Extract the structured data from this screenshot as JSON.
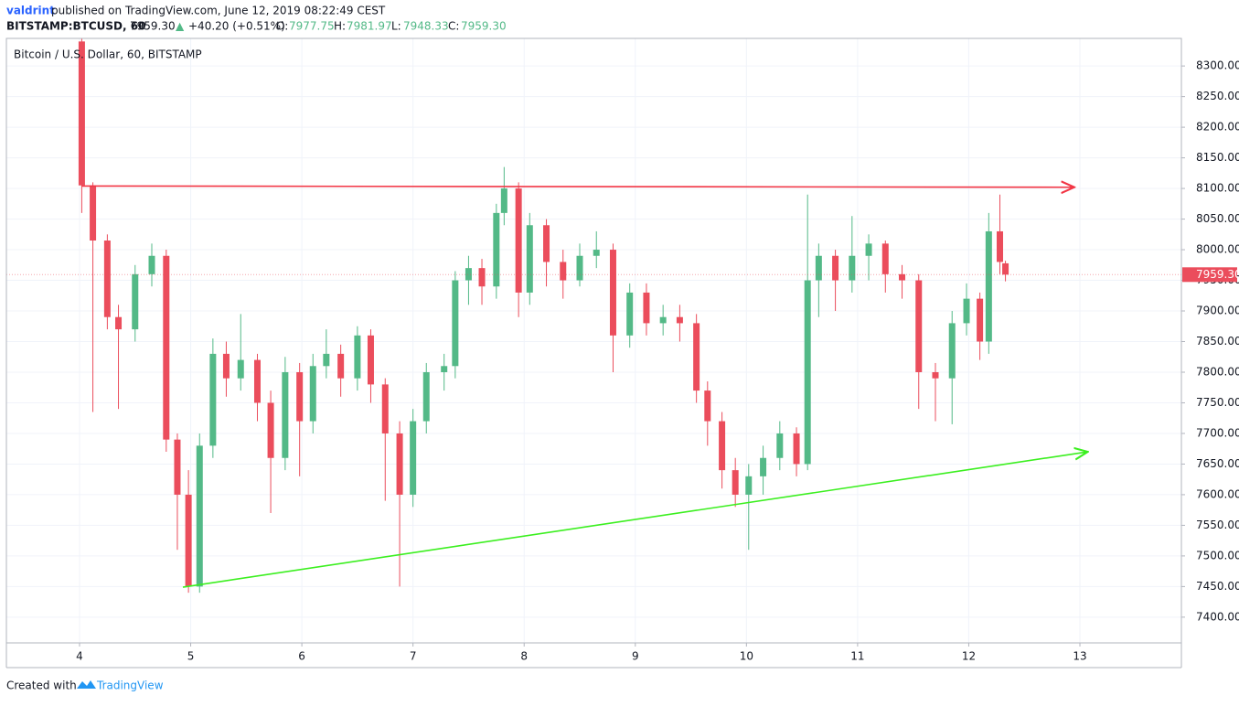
{
  "header": {
    "author": "valdrint",
    "published": "published on TradingView.com, June 12, 2019 08:22:49 CEST",
    "symbol": "BITSTAMP:BTCUSD, 60",
    "price": "7959.30",
    "arrow": "▲",
    "change": "+40.20 (+0.51%)",
    "o_label": "O:",
    "o": "7977.75",
    "h_label": "H:",
    "h": "7981.97",
    "l_label": "L:",
    "l": "7948.33",
    "c_label": "C:",
    "c": "7959.30"
  },
  "footer": {
    "created": "Created with",
    "brand": "TradingView"
  },
  "chart_data": {
    "type": "candlestick",
    "legend": "Bitcoin / U.S. Dollar, 60, BITSTAMP",
    "up_color": "#53b987",
    "down_color": "#eb4d5c",
    "grid": true,
    "xlim": [
      3.342,
      13.913
    ],
    "ylim": [
      7358,
      8345
    ],
    "xticks": [
      4,
      5,
      6,
      7,
      8,
      9,
      10,
      11,
      12,
      13
    ],
    "yticks": [
      {
        "value": 7400,
        "label": "7400.00"
      },
      {
        "value": 7450,
        "label": "7450.00"
      },
      {
        "value": 7500,
        "label": "7500.00"
      },
      {
        "value": 7550,
        "label": "7550.00"
      },
      {
        "value": 7600,
        "label": "7600.00"
      },
      {
        "value": 7650,
        "label": "7650.00"
      },
      {
        "value": 7700,
        "label": "7700.00"
      },
      {
        "value": 7750,
        "label": "7750.00"
      },
      {
        "value": 7800,
        "label": "7800.00"
      },
      {
        "value": 7850,
        "label": "7850.00"
      },
      {
        "value": 7900,
        "label": "7900.00"
      },
      {
        "value": 7950,
        "label": "7950.00"
      },
      {
        "value": 8000,
        "label": "8000.00"
      },
      {
        "value": 8050,
        "label": "8050.00"
      },
      {
        "value": 8100,
        "label": "8100.00"
      },
      {
        "value": 8150,
        "label": "8150.00"
      },
      {
        "value": 8200,
        "label": "8200.00"
      },
      {
        "value": 8250,
        "label": "8250.00"
      },
      {
        "value": 8300,
        "label": "8300.00"
      }
    ],
    "x": [
      4.02,
      4.12,
      4.25,
      4.35,
      4.5,
      4.65,
      4.78,
      4.88,
      4.98,
      5.08,
      5.2,
      5.32,
      5.45,
      5.6,
      5.72,
      5.85,
      5.98,
      6.1,
      6.22,
      6.35,
      6.5,
      6.62,
      6.75,
      6.88,
      7.0,
      7.12,
      7.28,
      7.38,
      7.5,
      7.62,
      7.75,
      7.82,
      7.95,
      8.05,
      8.2,
      8.35,
      8.5,
      8.65,
      8.8,
      8.95,
      9.1,
      9.25,
      9.4,
      9.55,
      9.65,
      9.78,
      9.9,
      10.02,
      10.15,
      10.3,
      10.45,
      10.55,
      10.65,
      10.8,
      10.95,
      11.1,
      11.25,
      11.4,
      11.55,
      11.7,
      11.85,
      11.98,
      12.1,
      12.18,
      12.28,
      12.33
    ],
    "open": [
      8340,
      8105,
      8015,
      7890,
      7870,
      7960,
      7990,
      7690,
      7600,
      7450,
      7680,
      7830,
      7790,
      7820,
      7750,
      7660,
      7800,
      7720,
      7810,
      7830,
      7790,
      7860,
      7780,
      7700,
      7600,
      7720,
      7800,
      7810,
      7950,
      7970,
      7940,
      8060,
      8100,
      7930,
      8040,
      7980,
      7950,
      7990,
      8000,
      7860,
      7930,
      7880,
      7890,
      7880,
      7770,
      7720,
      7640,
      7600,
      7630,
      7660,
      7700,
      7650,
      7950,
      7990,
      7950,
      7990,
      8010,
      7960,
      7950,
      7800,
      7790,
      7880,
      7920,
      7850,
      8030,
      7977.75
    ],
    "high": [
      8345,
      8110,
      8025,
      7910,
      7975,
      8010,
      8000,
      7700,
      7640,
      7700,
      7855,
      7850,
      7895,
      7830,
      7770,
      7825,
      7815,
      7830,
      7870,
      7845,
      7875,
      7870,
      7790,
      7720,
      7740,
      7815,
      7830,
      7965,
      7990,
      7985,
      8075,
      8135,
      8110,
      8060,
      8050,
      8000,
      8010,
      8030,
      8010,
      7945,
      7945,
      7910,
      7910,
      7895,
      7785,
      7735,
      7660,
      7650,
      7680,
      7720,
      7710,
      8090,
      8010,
      8000,
      8055,
      8025,
      8015,
      7975,
      7960,
      7815,
      7900,
      7945,
      7930,
      8060,
      8090,
      7981.97
    ],
    "low": [
      8060,
      7735,
      7870,
      7740,
      7850,
      7940,
      7670,
      7510,
      7440,
      7440,
      7660,
      7760,
      7770,
      7720,
      7570,
      7640,
      7630,
      7700,
      7790,
      7760,
      7770,
      7750,
      7590,
      7450,
      7580,
      7700,
      7770,
      7790,
      7910,
      7910,
      7920,
      8040,
      7890,
      7910,
      7940,
      7920,
      7940,
      7970,
      7800,
      7840,
      7860,
      7860,
      7850,
      7750,
      7680,
      7610,
      7580,
      7510,
      7600,
      7640,
      7630,
      7640,
      7890,
      7900,
      7930,
      7950,
      7930,
      7920,
      7740,
      7720,
      7715,
      7860,
      7820,
      7830,
      7960,
      7948.33
    ],
    "close": [
      8105,
      8015,
      7890,
      7870,
      7960,
      7990,
      7690,
      7600,
      7450,
      7680,
      7830,
      7790,
      7820,
      7750,
      7660,
      7800,
      7720,
      7810,
      7830,
      7790,
      7860,
      7780,
      7700,
      7600,
      7720,
      7800,
      7810,
      7950,
      7970,
      7940,
      8060,
      8100,
      7930,
      8040,
      7980,
      7950,
      7990,
      8000,
      7860,
      7930,
      7880,
      7890,
      7880,
      7770,
      7720,
      7640,
      7600,
      7630,
      7660,
      7700,
      7650,
      7950,
      7990,
      7950,
      7990,
      8010,
      7960,
      7950,
      7800,
      7790,
      7880,
      7920,
      7850,
      8030,
      7980,
      7959.3
    ],
    "last_price_label": "7959.30",
    "trend_lines": [
      {
        "color": "#f23645",
        "x": [
          4.02,
          12.95
        ],
        "y": [
          8104,
          8102
        ]
      },
      {
        "color": "#3bef1f",
        "x": [
          4.93,
          13.07
        ],
        "y": [
          7449,
          7670
        ]
      }
    ]
  }
}
